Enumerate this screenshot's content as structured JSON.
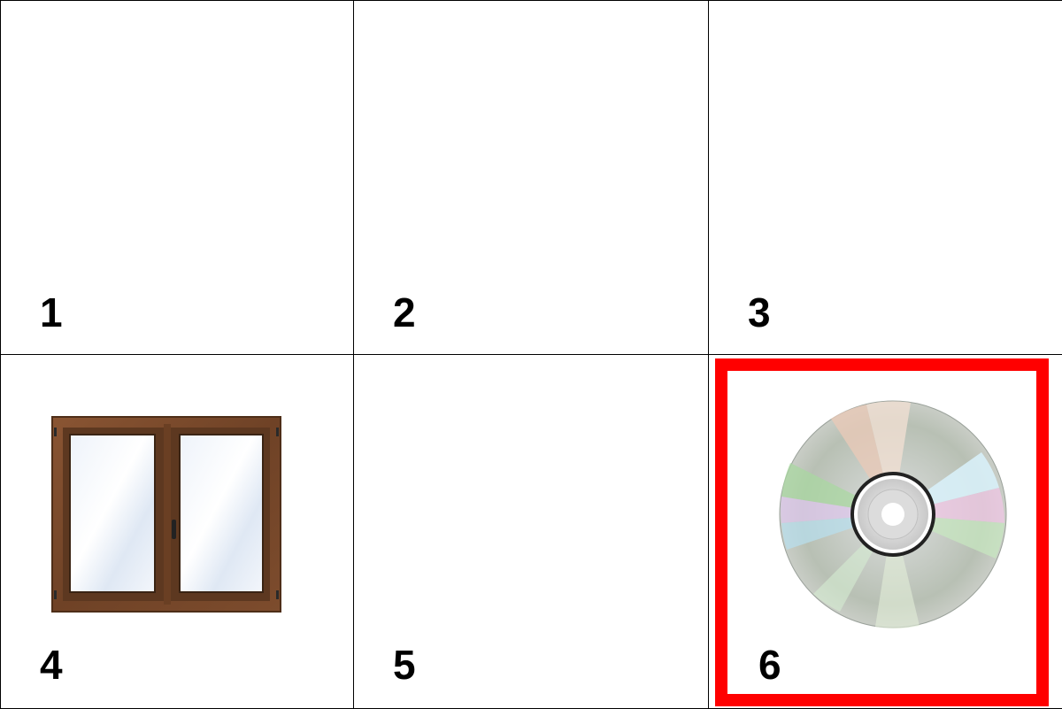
{
  "grid": {
    "cells": [
      {
        "number": "1",
        "image": null,
        "selected": false
      },
      {
        "number": "2",
        "image": null,
        "selected": false
      },
      {
        "number": "3",
        "image": null,
        "selected": false
      },
      {
        "number": "4",
        "image": "window-icon",
        "selected": false
      },
      {
        "number": "5",
        "image": null,
        "selected": false
      },
      {
        "number": "6",
        "image": "compact-disc-icon",
        "selected": true
      }
    ]
  },
  "colors": {
    "selection": "#ff0000",
    "border": "#000000",
    "window_frame": "#7a4a2a"
  }
}
